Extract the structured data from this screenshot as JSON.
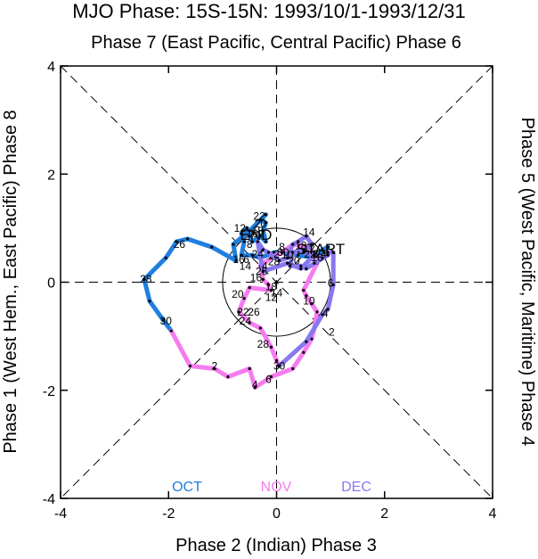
{
  "chart_data": {
    "type": "line",
    "title": "MJO Phase: 15S-15N: 1993/10/1-1993/12/31",
    "top_label": "Phase 7 (East Pacific, Central Pacific) Phase 6",
    "xlabel": "Phase 2 (Indian) Phase 3",
    "ylabel_left": "Phase 1 (West Hem., East Pacific) Phase 8",
    "ylabel_right": "Phase 5 (West Pacific, Maritime) Phase 4",
    "xlim": [
      -4,
      4
    ],
    "ylim": [
      -4,
      4
    ],
    "xticks": [
      "-4",
      "-2",
      "0",
      "2",
      "4"
    ],
    "yticks": [
      "-4",
      "-2",
      "0",
      "2",
      "4"
    ],
    "unit_circle_radius": 1,
    "start_label": "START",
    "end_label": "END",
    "colors": {
      "OCT": "#1e7fe0",
      "NOV": "#f57cf0",
      "DEC": "#8878f0"
    },
    "series": [
      {
        "name": "OCT",
        "points": [
          [
            0.85,
            0.6
          ],
          [
            0.95,
            0.65
          ],
          [
            0.7,
            0.45
          ],
          [
            0.4,
            0.5
          ],
          [
            0.05,
            0.55
          ],
          [
            -0.05,
            0.55
          ],
          [
            -0.3,
            0.45
          ],
          [
            -0.45,
            0.5
          ],
          [
            -0.65,
            0.5
          ],
          [
            -0.6,
            0.75
          ],
          [
            -0.65,
            0.9
          ],
          [
            -0.55,
            1.0
          ],
          [
            -0.5,
            0.85
          ],
          [
            -0.45,
            0.75
          ],
          [
            -0.3,
            0.85
          ],
          [
            -0.2,
            0.75
          ],
          [
            -0.25,
            0.95
          ],
          [
            -0.2,
            1.1
          ],
          [
            -0.3,
            1.15
          ],
          [
            -0.2,
            1.25
          ],
          [
            -0.5,
            0.95
          ],
          [
            -0.8,
            0.7
          ],
          [
            -0.75,
            0.4
          ],
          [
            -1.2,
            0.65
          ],
          [
            -1.65,
            0.8
          ],
          [
            -1.85,
            0.75
          ],
          [
            -2.05,
            0.45
          ],
          [
            -2.45,
            0.05
          ],
          [
            -2.35,
            -0.35
          ],
          [
            -2.1,
            -0.7
          ],
          [
            -1.95,
            -0.9
          ]
        ],
        "labels": [
          {
            "text": "2",
            "x": 0.0,
            "y": 0.52
          },
          {
            "text": "4",
            "x": -0.22,
            "y": 0.3
          },
          {
            "text": "6",
            "x": -0.56,
            "y": 0.42
          },
          {
            "text": "8",
            "x": -0.5,
            "y": 0.7
          },
          {
            "text": "10",
            "x": -0.45,
            "y": 0.9
          },
          {
            "text": "12",
            "x": -0.68,
            "y": 1.0
          },
          {
            "text": "14",
            "x": -0.58,
            "y": 0.3
          },
          {
            "text": "16",
            "x": -0.7,
            "y": 0.42
          },
          {
            "text": "18",
            "x": -0.35,
            "y": 0.95
          },
          {
            "text": "20",
            "x": -0.3,
            "y": 1.08
          },
          {
            "text": "22",
            "x": -0.32,
            "y": 1.22
          },
          {
            "text": "24",
            "x": -0.35,
            "y": 0.52
          },
          {
            "text": "26",
            "x": -1.8,
            "y": 0.7
          },
          {
            "text": "28",
            "x": -2.42,
            "y": 0.06
          },
          {
            "text": "30",
            "x": -2.05,
            "y": -0.72
          }
        ]
      },
      {
        "name": "NOV",
        "points": [
          [
            -1.95,
            -0.9
          ],
          [
            -1.6,
            -1.55
          ],
          [
            -1.15,
            -1.6
          ],
          [
            -0.9,
            -1.75
          ],
          [
            -0.5,
            -1.6
          ],
          [
            -0.4,
            -1.95
          ],
          [
            -0.1,
            -1.75
          ],
          [
            0.3,
            -1.6
          ],
          [
            0.5,
            -1.3
          ],
          [
            0.65,
            -1.05
          ],
          [
            0.7,
            -0.85
          ],
          [
            0.75,
            -0.55
          ],
          [
            0.65,
            -0.4
          ],
          [
            0.55,
            -0.25
          ],
          [
            0.5,
            -0.15
          ],
          [
            0.75,
            0.35
          ],
          [
            0.6,
            0.65
          ],
          [
            0.3,
            0.7
          ],
          [
            0.1,
            0.55
          ],
          [
            -0.1,
            0.45
          ],
          [
            -0.3,
            0.3
          ],
          [
            -0.25,
            0.05
          ],
          [
            -0.15,
            -0.05
          ],
          [
            -0.1,
            -0.15
          ],
          [
            -0.5,
            -0.1
          ],
          [
            -0.6,
            -0.3
          ],
          [
            -0.7,
            -0.55
          ],
          [
            -0.5,
            -0.75
          ],
          [
            -0.3,
            -0.85
          ],
          [
            -0.1,
            -1.2
          ],
          [
            0.0,
            -1.45
          ],
          [
            0.05,
            -1.55
          ]
        ],
        "labels": [
          {
            "text": "2",
            "x": -1.15,
            "y": -1.55
          },
          {
            "text": "4",
            "x": -0.4,
            "y": -1.9
          },
          {
            "text": "6",
            "x": -0.15,
            "y": -1.8
          },
          {
            "text": "8",
            "x": 0.1,
            "y": 0.65
          },
          {
            "text": "10",
            "x": 0.2,
            "y": 0.5
          },
          {
            "text": "12",
            "x": -0.1,
            "y": -0.28
          },
          {
            "text": "14",
            "x": 0.0,
            "y": -0.2
          },
          {
            "text": "16",
            "x": -0.38,
            "y": 0.08
          },
          {
            "text": "18",
            "x": -0.1,
            "y": -0.08
          },
          {
            "text": "20",
            "x": -0.72,
            "y": -0.22
          },
          {
            "text": "22",
            "x": -0.62,
            "y": -0.55
          },
          {
            "text": "24",
            "x": -0.58,
            "y": -0.72
          },
          {
            "text": "26",
            "x": -0.42,
            "y": -0.55
          },
          {
            "text": "28",
            "x": -0.25,
            "y": -1.15
          },
          {
            "text": "30",
            "x": 0.05,
            "y": -1.55
          }
        ]
      },
      {
        "name": "DEC",
        "points": [
          [
            0.05,
            -1.55
          ],
          [
            0.55,
            -1.1
          ],
          [
            0.85,
            -0.6
          ],
          [
            0.95,
            -0.5
          ],
          [
            1.05,
            -0.05
          ],
          [
            1.05,
            0.55
          ],
          [
            0.95,
            0.55
          ],
          [
            0.85,
            0.45
          ],
          [
            0.7,
            0.5
          ],
          [
            0.5,
            0.55
          ],
          [
            0.65,
            0.7
          ],
          [
            0.55,
            0.85
          ],
          [
            0.4,
            0.75
          ],
          [
            0.3,
            0.7
          ],
          [
            0.2,
            0.45
          ],
          [
            0.05,
            0.4
          ],
          [
            -0.15,
            0.55
          ],
          [
            -0.25,
            0.6
          ],
          [
            -0.35,
            0.75
          ],
          [
            -0.25,
            0.2
          ],
          [
            0.2,
            0.35
          ],
          [
            0.45,
            0.25
          ],
          [
            0.7,
            0.5
          ],
          [
            0.85,
            0.45
          ],
          [
            0.95,
            0.5
          ],
          [
            0.7,
            0.35
          ],
          [
            0.55,
            0.25
          ],
          [
            0.45,
            0.3
          ],
          [
            0.25,
            0.3
          ],
          [
            0.3,
            0.55
          ],
          [
            0.5,
            0.6
          ]
        ],
        "labels": [
          {
            "text": "2",
            "x": 1.02,
            "y": -0.92
          },
          {
            "text": "4",
            "x": 0.9,
            "y": -0.58
          },
          {
            "text": "6",
            "x": 1.0,
            "y": -0.02
          },
          {
            "text": "8",
            "x": 0.72,
            "y": 0.52
          },
          {
            "text": "10",
            "x": 0.6,
            "y": -0.35
          },
          {
            "text": "12",
            "x": 0.6,
            "y": 0.62
          },
          {
            "text": "14",
            "x": 0.6,
            "y": 0.92
          },
          {
            "text": "16",
            "x": 0.75,
            "y": 0.45
          },
          {
            "text": "18",
            "x": 0.45,
            "y": 0.68
          },
          {
            "text": "20",
            "x": 0.32,
            "y": 0.4
          },
          {
            "text": "22",
            "x": 0.62,
            "y": 0.52
          },
          {
            "text": "24",
            "x": 0.82,
            "y": 0.52
          },
          {
            "text": "26",
            "x": -0.28,
            "y": 0.2
          },
          {
            "text": "28",
            "x": -0.05,
            "y": 0.38
          },
          {
            "text": "30",
            "x": 0.12,
            "y": 0.55
          }
        ]
      }
    ],
    "start": [
      0.95,
      0.62
    ],
    "end": [
      -0.05,
      0.88
    ]
  }
}
